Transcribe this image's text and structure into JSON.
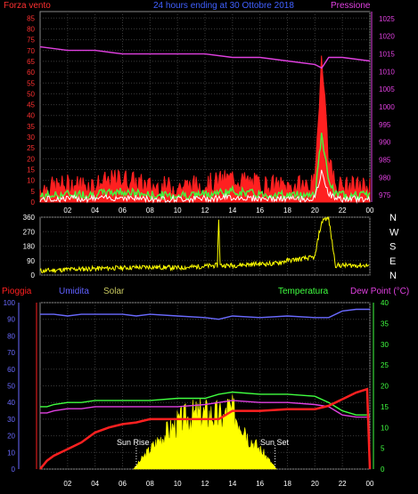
{
  "top_chart": {
    "header_left": "Forza vento",
    "header_center": "24 hours ending at 30 Ottobre 2018",
    "header_right": "Pressione",
    "y_left_ticks": [
      0,
      5,
      10,
      15,
      20,
      25,
      30,
      35,
      40,
      45,
      50,
      55,
      60,
      65,
      70,
      75,
      80,
      85
    ],
    "y_right_ticks": [
      975,
      980,
      985,
      990,
      995,
      1000,
      1005,
      1010,
      1015,
      1020,
      1025
    ],
    "ylim_left": [
      0,
      88
    ],
    "ylim_right": [
      973,
      1027
    ],
    "colors": {
      "wind_gust": "#ff2020",
      "wind_avg": "#40ff40",
      "wind_min": "#ffffff",
      "pressure": "#e040e0",
      "header_left": "#ff3030",
      "header_center": "#4060ff",
      "header_right": "#e040e0"
    }
  },
  "direction_chart": {
    "y_ticks": [
      0,
      90,
      180,
      270,
      360
    ],
    "ylim": [
      0,
      360
    ],
    "compass": [
      "N",
      "W",
      "S",
      "E",
      "N"
    ],
    "color": "#ffff00"
  },
  "bottom_chart": {
    "labels": {
      "pioggia": "Pioggia",
      "umidita": "Umidita",
      "solar": "Solar",
      "temperatura": "Temperatura",
      "dew_point": "Dew Point (°C)"
    },
    "y_left_ticks": [
      0,
      10,
      20,
      30,
      40,
      50,
      60,
      70,
      80,
      90,
      100
    ],
    "y_right_ticks": [
      0,
      5,
      10,
      15,
      20,
      25,
      30,
      35,
      40
    ],
    "ylim_left": [
      0,
      100
    ],
    "ylim_right": [
      0,
      40
    ],
    "annotations": {
      "sun_rise": "Sun Rise",
      "sun_set": "Sun Set"
    },
    "colors": {
      "pioggia": "#ff2020",
      "umidita": "#6060ff",
      "solar": "#c8c860",
      "temperatura": "#40ff40",
      "dew_point": "#e040e0",
      "rain_line": "#ff2020",
      "humidity_line": "#6a6aff",
      "solar_fill": "#ffff00",
      "temp_line": "#40ff40",
      "dew_line": "#e040e0"
    }
  },
  "x_axis": {
    "tick_labels": [
      "02",
      "04",
      "06",
      "08",
      "10",
      "12",
      "14",
      "16",
      "18",
      "20",
      "22",
      "00"
    ]
  },
  "chart_data": [
    {
      "type": "line",
      "title": "24 hours ending at 30 Ottobre 2018",
      "x_hours": [
        0,
        2,
        4,
        6,
        8,
        10,
        12,
        14,
        16,
        18,
        20,
        20.5,
        21,
        21.5,
        22,
        24
      ],
      "series": [
        {
          "name": "Forza vento",
          "values": [
            6,
            8,
            8,
            11,
            7,
            7,
            8,
            11,
            8,
            7,
            8,
            70,
            20,
            8,
            7,
            7
          ]
        },
        {
          "name": "Pressione",
          "values": [
            1017,
            1016,
            1016,
            1015,
            1015,
            1015,
            1015,
            1014,
            1014,
            1013,
            1012,
            1011,
            1014,
            1014,
            1014,
            1013
          ]
        }
      ]
    },
    {
      "type": "line",
      "x_hours": [
        0,
        2,
        4,
        6,
        8,
        10,
        12,
        12.9,
        13.0,
        13.1,
        14,
        16,
        17,
        18,
        20,
        20.3,
        20.6,
        21,
        21.5,
        24
      ],
      "series": [
        {
          "name": "",
          "values": [
            25,
            35,
            40,
            45,
            50,
            45,
            55,
            60,
            350,
            60,
            60,
            70,
            70,
            90,
            110,
            260,
            350,
            350,
            60,
            60
          ]
        }
      ]
    },
    {
      "type": "line",
      "x_hours": [
        0,
        0.5,
        1,
        2,
        3,
        4,
        5,
        6,
        7,
        8,
        10,
        12,
        13,
        14,
        16,
        18,
        20,
        21,
        22,
        23,
        23.8,
        24
      ],
      "series": [
        {
          "name": "Pioggia",
          "values": [
            0,
            5,
            8,
            12,
            16,
            22,
            25,
            27,
            28,
            30,
            30,
            30,
            30,
            35,
            35,
            36,
            36,
            38,
            42,
            46,
            48,
            0
          ]
        },
        {
          "name": "Umidita",
          "values": [
            93,
            93,
            93,
            92,
            93,
            93,
            93,
            93,
            92,
            93,
            92,
            91,
            90,
            92,
            91,
            92,
            91,
            91,
            95,
            96,
            96,
            96
          ]
        },
        {
          "name": "Temperatura",
          "values": [
            15,
            15,
            15.5,
            16,
            16,
            16.5,
            16.5,
            16.5,
            16.5,
            16.5,
            17,
            17,
            18,
            18.5,
            18,
            18,
            17.5,
            16,
            14,
            13,
            13,
            13
          ]
        },
        {
          "name": "Dew Point (°C)",
          "values": [
            13.5,
            13.5,
            14,
            14.5,
            14.5,
            15,
            15,
            15,
            15,
            15,
            15,
            15.5,
            16,
            16.5,
            16,
            16,
            15.5,
            15,
            13,
            12.5,
            12.5,
            12.5
          ]
        }
      ]
    }
  ]
}
